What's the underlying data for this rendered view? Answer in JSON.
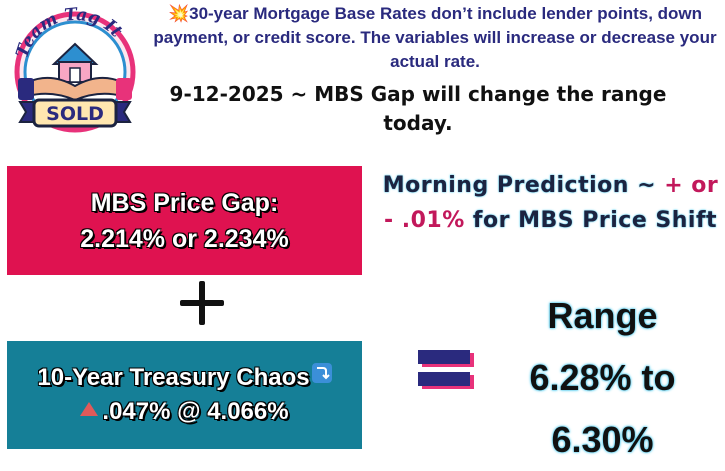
{
  "logo": {
    "arc_text": "Team Tag It",
    "banner_text": "SOLD"
  },
  "disclaimer": {
    "icon": "collision-icon",
    "text": "30-year Mortgage Base Rates don’t include lender points, down payment, or credit score. The variables will increase or decrease your actual rate."
  },
  "headline": "9-12-2025 ~ MBS Gap will change the range today.",
  "mbs_box": {
    "line1": "MBS Price Gap:",
    "line2": "2.214% or 2.234%",
    "color": "#df1250"
  },
  "treasury_box": {
    "line1": "10-Year Treasury Chaos",
    "line1_icon": "arrow-down-right-icon",
    "line2_icon": "triangle-up-icon",
    "line2": ".047% @ 4.066%",
    "color": "#157f97"
  },
  "prediction": {
    "part1": "Morning Prediction ~ ",
    "accent": "+ or - .01%",
    "part2": " for MBS Price Shift"
  },
  "range": {
    "title": "Range",
    "line1": "6.28% to",
    "line2": "6.30%"
  }
}
